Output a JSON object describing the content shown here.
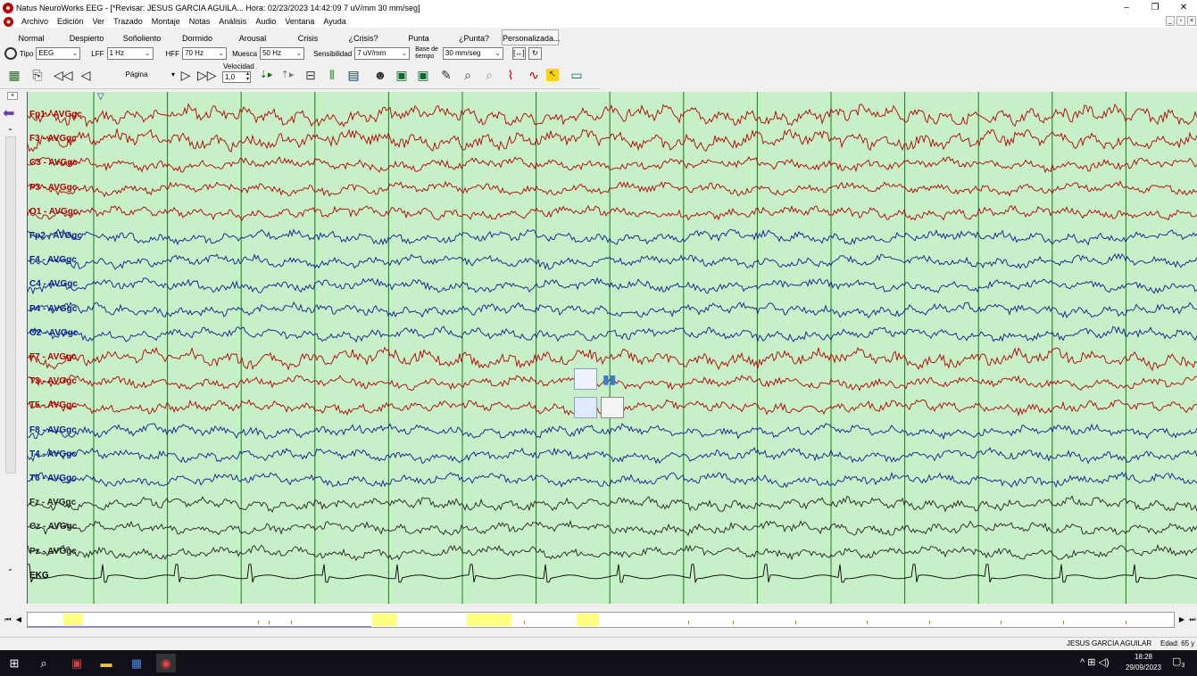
{
  "window": {
    "title": "Natus NeuroWorks EEG - [*Revisar:   JESUS  GARCIA AGUILA...  Hora: 02/23/2023 14:42:09   7 uV/mm   30 mm/seg]",
    "minimize": "–",
    "restore": "❐",
    "close": "✕"
  },
  "menu": [
    "Archivo",
    "Edición",
    "Ver",
    "Trazado",
    "Montaje",
    "Notas",
    "Análisis",
    "Audio",
    "Ventana",
    "Ayuda"
  ],
  "mdi_controls": [
    "_",
    "▫",
    "×"
  ],
  "protocols": [
    "Normal",
    "Despierto",
    "Soñoliento",
    "Dormido",
    "Arousal",
    "Crisis",
    "¿Crisis?",
    "Punta",
    "¿Punta?",
    "Personalizada..."
  ],
  "filters": {
    "tipo_label": "Tipo",
    "tipo_value": "EEG",
    "lff_label": "LFF",
    "lff_value": "1 Hz",
    "hff_label": "HFF",
    "hff_value": "70 Hz",
    "muesca_label": "Muesca",
    "muesca_value": "50 Hz",
    "sens_label": "Sensibilidad",
    "sens_value": "7 uV/mm",
    "base_label_1": "Base de",
    "base_label_2": "tiempo",
    "base_value": "30 mm/seg",
    "bracket_btn": "[↔]",
    "refresh_btn": "↻"
  },
  "toolbar": {
    "page_label": "Página",
    "velocity_label": "Velocidad",
    "velocity_value": "1,0"
  },
  "channels": [
    {
      "label": "Fp1 - AVGgc",
      "color": "#b00000"
    },
    {
      "label": "F3 - AVGgc",
      "color": "#b00000"
    },
    {
      "label": "C3 - AVGgc",
      "color": "#b00000"
    },
    {
      "label": "P3 - AVGgc",
      "color": "#b00000"
    },
    {
      "label": "O1 - AVGgc",
      "color": "#b00000"
    },
    {
      "label": "Fp2 - AVGgc",
      "color": "#0a1e8c"
    },
    {
      "label": "F4 - AVGgc",
      "color": "#0a1e8c"
    },
    {
      "label": "C4 - AVGgc",
      "color": "#0a1e8c"
    },
    {
      "label": "P4 - AVGgc",
      "color": "#0a1e8c"
    },
    {
      "label": "O2 - AVGgc",
      "color": "#0a1e8c"
    },
    {
      "label": "F7 - AVGgc",
      "color": "#b00000"
    },
    {
      "label": "T3 - AVGgc",
      "color": "#b00000"
    },
    {
      "label": "T5 - AVGgc",
      "color": "#b00000"
    },
    {
      "label": "F8 - AVGgc",
      "color": "#0a1e8c"
    },
    {
      "label": "T4 - AVGgc",
      "color": "#0a1e8c"
    },
    {
      "label": "T6 - AVGgc",
      "color": "#0a1e8c"
    },
    {
      "label": "Fz - AVGgc",
      "color": "#222222"
    },
    {
      "label": "Cz - AVGgc",
      "color": "#222222"
    },
    {
      "label": "Pz - AVGgc",
      "color": "#222222"
    },
    {
      "label": "EKG",
      "color": "#000000"
    }
  ],
  "colors": {
    "eeg_background": "#c8f0c8",
    "second_gridline": "#1a7a1a",
    "left_hemisphere": "#b00000",
    "right_hemisphere": "#0a1e8c",
    "midline": "#222222",
    "event_marker": "#ffff80"
  },
  "status": {
    "patient": "JESUS  GARCIA AGUILAR",
    "age": "Edad: 65 y"
  },
  "taskbar": {
    "time": "18:28",
    "date": "29/09/2023",
    "notifications": "3",
    "tray_icons": "^  ⊞  ◁)"
  }
}
